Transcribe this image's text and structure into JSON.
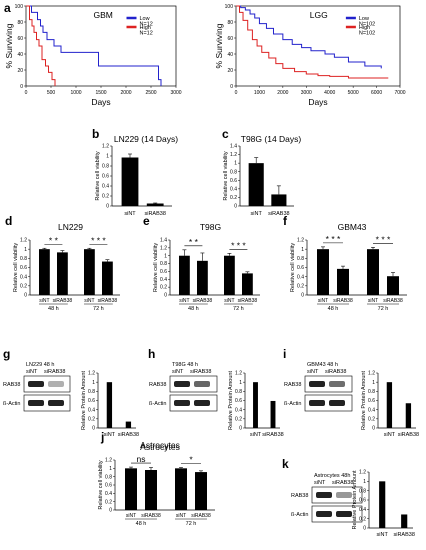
{
  "panel_labels": [
    "a",
    "b",
    "c",
    "d",
    "e",
    "f",
    "g",
    "h",
    "i",
    "j",
    "k"
  ],
  "chart_data": [
    {
      "id": "a1",
      "type": "line",
      "title": "GBM",
      "xlabel": "Days",
      "ylabel": "% Surviving",
      "xlim": [
        0,
        3000
      ],
      "ylim": [
        0,
        100
      ],
      "xticks": [
        "0",
        "500",
        "1000",
        "1500",
        "2000",
        "2500",
        "3000"
      ],
      "yticks": [
        "0",
        "20",
        "40",
        "60",
        "80",
        "100"
      ],
      "legend": {
        "placement": "top-right",
        "entries": [
          {
            "label": "Low",
            "n": "N=12",
            "color": "#2222cc"
          },
          {
            "label": "High",
            "n": "N=12",
            "color": "#dd2222"
          }
        ]
      },
      "series": [
        {
          "name": "Low",
          "color": "#2222cc",
          "x": [
            0,
            60,
            110,
            170,
            230,
            290,
            340,
            420,
            560,
            700,
            1150,
            1450,
            2050,
            2650,
            2700
          ],
          "y": [
            100,
            100,
            92,
            92,
            83,
            75,
            67,
            58,
            50,
            42,
            42,
            25,
            25,
            8,
            0
          ]
        },
        {
          "name": "High",
          "color": "#dd2222",
          "x": [
            0,
            70,
            120,
            160,
            210,
            260,
            320,
            390,
            450,
            520,
            580
          ],
          "y": [
            100,
            83,
            75,
            67,
            58,
            50,
            33,
            25,
            17,
            8,
            0
          ]
        }
      ]
    },
    {
      "id": "a2",
      "type": "line",
      "title": "LGG",
      "xlabel": "Days",
      "ylabel": "% Surviving",
      "xlim": [
        0,
        7000
      ],
      "ylim": [
        0,
        100
      ],
      "xticks": [
        "0",
        "1000",
        "2000",
        "3000",
        "4000",
        "5000",
        "6000",
        "7000"
      ],
      "yticks": [
        "0",
        "20",
        "40",
        "60",
        "80",
        "100"
      ],
      "legend": {
        "placement": "top-right",
        "entries": [
          {
            "label": "Low",
            "n": "N=102",
            "color": "#2222cc"
          },
          {
            "label": "High",
            "n": "N=102",
            "color": "#dd2222"
          }
        ]
      },
      "series": [
        {
          "name": "Low",
          "color": "#2222cc",
          "x": [
            0,
            200,
            400,
            600,
            800,
            1000,
            1300,
            1600,
            2000,
            2400,
            2800,
            3200,
            3800,
            4200,
            4800,
            5500,
            6200
          ],
          "y": [
            100,
            98,
            95,
            90,
            85,
            78,
            72,
            65,
            58,
            52,
            48,
            44,
            40,
            36,
            30,
            25,
            22
          ]
        },
        {
          "name": "High",
          "color": "#dd2222",
          "x": [
            0,
            150,
            300,
            500,
            700,
            900,
            1100,
            1400,
            1700,
            2000,
            2500,
            3000,
            3500,
            4000,
            4800,
            5500,
            6500
          ],
          "y": [
            100,
            92,
            82,
            70,
            58,
            50,
            42,
            35,
            28,
            22,
            18,
            15,
            13,
            12,
            10,
            10,
            10
          ]
        }
      ]
    },
    {
      "id": "b",
      "type": "bar",
      "title": "LN229 (14 Days)",
      "ylabel": "Relative cell viability",
      "ylim": [
        0,
        1.2
      ],
      "yticks": [
        "0",
        "0.2",
        "0.4",
        "0.6",
        "0.8",
        "1",
        "1.2"
      ],
      "categories": [
        "siNT",
        "siRAB38"
      ],
      "values": [
        0.97,
        0.05
      ],
      "errors": [
        0.07,
        0.01
      ]
    },
    {
      "id": "c",
      "type": "bar",
      "title": "T98G (14 Days)",
      "ylabel": "Relative cell viability",
      "ylim": [
        0,
        1.4
      ],
      "yticks": [
        "0",
        "0.2",
        "0.4",
        "0.6",
        "0.8",
        "1",
        "1.2",
        "1.4"
      ],
      "categories": [
        "siNT",
        "siRAB38"
      ],
      "values": [
        1.0,
        0.27
      ],
      "errors": [
        0.13,
        0.2
      ]
    },
    {
      "id": "d",
      "type": "bar",
      "title": "LN229",
      "ylabel": "Relative cell viability",
      "ylim": [
        0,
        1.2
      ],
      "yticks": [
        "0",
        "0.2",
        "0.4",
        "0.6",
        "0.8",
        "1",
        "1.2"
      ],
      "categories": [
        "siNT",
        "siRAB38",
        "siNT",
        "siRAB38"
      ],
      "groups": [
        "48 h",
        "72 h"
      ],
      "values": [
        1.0,
        0.93,
        1.0,
        0.73
      ],
      "errors": [
        0.02,
        0.04,
        0.02,
        0.04
      ],
      "sig": [
        {
          "text": "* *",
          "group": 0
        },
        {
          "text": "* * *",
          "group": 1
        }
      ]
    },
    {
      "id": "e",
      "type": "bar",
      "title": "T98G",
      "ylabel": "Relative cell viability",
      "ylim": [
        0,
        1.4
      ],
      "yticks": [
        "0",
        "0.2",
        "0.4",
        "0.6",
        "0.8",
        "1",
        "1.2",
        "1.4"
      ],
      "categories": [
        "siNT",
        "siRAB38",
        "siNT",
        "siRAB38"
      ],
      "groups": [
        "48 h",
        "72 h"
      ],
      "values": [
        1.0,
        0.87,
        1.0,
        0.55
      ],
      "errors": [
        0.15,
        0.2,
        0.06,
        0.04
      ],
      "sig": [
        {
          "text": "* *",
          "group": 0
        },
        {
          "text": "* * *",
          "group": 1
        }
      ]
    },
    {
      "id": "f",
      "type": "bar",
      "title": "GBM43",
      "ylabel": "Relative cell viability",
      "ylim": [
        0,
        1.2
      ],
      "yticks": [
        "0",
        "0.2",
        "0.4",
        "0.6",
        "0.8",
        "1",
        "1.2"
      ],
      "categories": [
        "siNT",
        "siRAB38",
        "siNT",
        "siRAB38"
      ],
      "groups": [
        "48 h",
        "72 h"
      ],
      "values": [
        1.0,
        0.57,
        1.0,
        0.41
      ],
      "errors": [
        0.05,
        0.06,
        0.04,
        0.08
      ],
      "sig": [
        {
          "text": "* * *",
          "group": 0
        },
        {
          "text": "* * *",
          "group": 1
        }
      ]
    },
    {
      "id": "g",
      "type": "bar",
      "blot_title": "LN229 48 h",
      "ylabel": "Relative Protein Amount",
      "ylim": [
        0,
        1.2
      ],
      "yticks": [
        "0",
        "0.2",
        "0.4",
        "0.6",
        "0.8",
        "1",
        "1.2"
      ],
      "categories": [
        "siNT",
        "siRAB38"
      ],
      "values": [
        1.0,
        0.14
      ],
      "blot": {
        "lanes": [
          "siNT",
          "siRAB38"
        ],
        "bands": [
          "RAB38",
          "ß-Actin"
        ]
      }
    },
    {
      "id": "h",
      "type": "bar",
      "blot_title": "T98G 48 h",
      "ylabel": "Relative Protein Amount",
      "ylim": [
        0,
        1.2
      ],
      "yticks": [
        "0",
        "0.2",
        "0.4",
        "0.6",
        "0.8",
        "1",
        "1.2"
      ],
      "categories": [
        "siNT",
        "siRAB38"
      ],
      "values": [
        1.0,
        0.59
      ],
      "blot": {
        "lanes": [
          "siNT",
          "siRAB38"
        ],
        "bands": [
          "RAB38",
          "ß-Actin"
        ]
      }
    },
    {
      "id": "i",
      "type": "bar",
      "blot_title": "GBM43 48 h",
      "ylabel": "Relative Protein Amount",
      "ylim": [
        0,
        1.2
      ],
      "yticks": [
        "0",
        "0.2",
        "0.4",
        "0.6",
        "0.8",
        "1",
        "1.2"
      ],
      "categories": [
        "siNT",
        "siRAB38"
      ],
      "values": [
        1.0,
        0.54
      ],
      "blot": {
        "lanes": [
          "siNT",
          "siRAB38"
        ],
        "bands": [
          "RAB38",
          "ß-Actin"
        ]
      }
    },
    {
      "id": "j",
      "type": "bar",
      "title": "Astrocytes",
      "ylabel": "Relative cell viability",
      "ylim": [
        0,
        1.2
      ],
      "yticks": [
        "0",
        "0.2",
        "0.4",
        "0.6",
        "0.8",
        "1",
        "1.2"
      ],
      "categories": [
        "siNT",
        "siRAB38",
        "siNT",
        "siRAB38"
      ],
      "groups": [
        "48 h",
        "72 h"
      ],
      "values": [
        1.0,
        0.96,
        1.0,
        0.91
      ],
      "errors": [
        0.03,
        0.06,
        0.02,
        0.03
      ],
      "sig": [
        {
          "text": "ns",
          "group": 0
        },
        {
          "text": "*",
          "group": 1
        }
      ]
    },
    {
      "id": "k",
      "type": "bar",
      "blot_title": "Astrocytes 48h",
      "ylabel": "Relative Protein Amount",
      "ylim": [
        0,
        1.2
      ],
      "yticks": [
        "0",
        "0.2",
        "0.4",
        "0.6",
        "0.8",
        "1",
        "1.2"
      ],
      "categories": [
        "siNT",
        "siRAB38"
      ],
      "values": [
        1.0,
        0.29
      ],
      "blot": {
        "lanes": [
          "siNT",
          "siRAB38"
        ],
        "bands": [
          "RAB38",
          "ß-Actin"
        ]
      }
    }
  ]
}
